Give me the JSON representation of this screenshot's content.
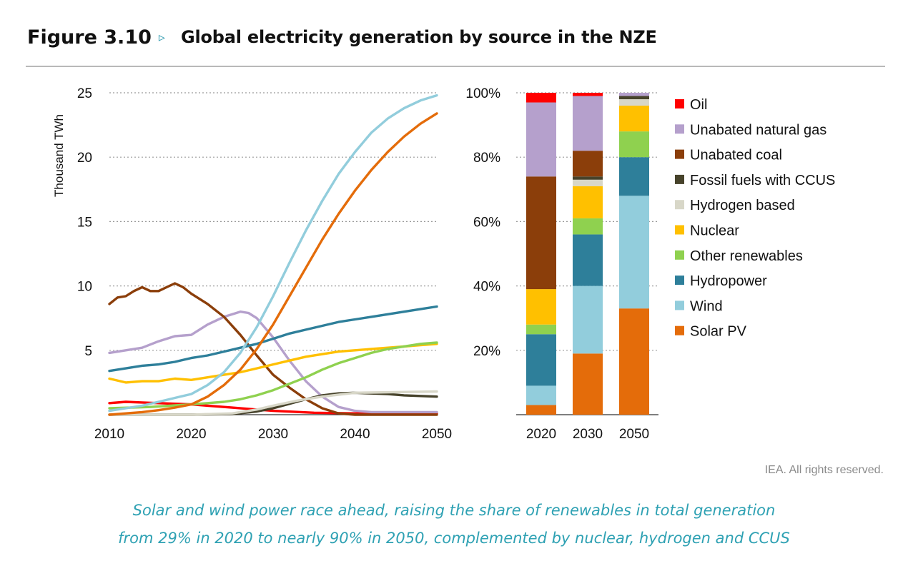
{
  "header": {
    "figure_number": "Figure 3.10",
    "arrow": "▹",
    "title": "Global electricity generation by source in the NZE"
  },
  "credit": "IEA. All rights reserved.",
  "caption": {
    "line1": "Solar and wind power race ahead, raising the share of renewables in total generation",
    "line2": "from 29% in 2020 to nearly 90% in 2050, complemented by nuclear, hydrogen and CCUS"
  },
  "chart_data": [
    {
      "type": "line",
      "ylabel": "Thousand TWh",
      "xlim": [
        2010,
        2050
      ],
      "ylim": [
        0,
        25
      ],
      "xticks": [
        2010,
        2020,
        2030,
        2040,
        2050
      ],
      "yticks": [
        5,
        10,
        15,
        20,
        25
      ],
      "grid": "dotted horizontal",
      "series": [
        {
          "name": "Oil",
          "color": "#ff0000",
          "x": [
            2010,
            2012,
            2014,
            2016,
            2018,
            2020,
            2022,
            2025,
            2028,
            2030,
            2035,
            2040,
            2045,
            2050
          ],
          "y": [
            0.9,
            1.0,
            0.95,
            0.9,
            0.85,
            0.8,
            0.7,
            0.55,
            0.4,
            0.3,
            0.15,
            0.1,
            0.1,
            0.1
          ]
        },
        {
          "name": "Unabated natural gas",
          "color": "#b5a0cc",
          "x": [
            2010,
            2012,
            2014,
            2016,
            2018,
            2020,
            2022,
            2024,
            2026,
            2027,
            2028,
            2030,
            2032,
            2034,
            2036,
            2038,
            2040,
            2042,
            2045,
            2050
          ],
          "y": [
            4.8,
            5.0,
            5.2,
            5.7,
            6.1,
            6.2,
            7.0,
            7.6,
            8.0,
            7.9,
            7.5,
            6.0,
            4.2,
            2.6,
            1.4,
            0.6,
            0.3,
            0.2,
            0.2,
            0.2
          ]
        },
        {
          "name": "Unabated coal",
          "color": "#8b3e0a",
          "x": [
            2010,
            2011,
            2012,
            2013,
            2014,
            2015,
            2016,
            2017,
            2018,
            2019,
            2020,
            2022,
            2024,
            2026,
            2028,
            2030,
            2032,
            2034,
            2036,
            2038,
            2040,
            2045,
            2050
          ],
          "y": [
            8.6,
            9.1,
            9.2,
            9.6,
            9.9,
            9.6,
            9.6,
            9.9,
            10.2,
            9.9,
            9.4,
            8.6,
            7.6,
            6.2,
            4.6,
            3.1,
            2.1,
            1.2,
            0.5,
            0.1,
            0.0,
            0.0,
            0.0
          ]
        },
        {
          "name": "Fossil fuels with CCUS",
          "color": "#47432b",
          "x": [
            2010,
            2020,
            2025,
            2028,
            2030,
            2032,
            2034,
            2036,
            2038,
            2040,
            2042,
            2044,
            2046,
            2048,
            2050
          ],
          "y": [
            0.0,
            0.0,
            0.05,
            0.25,
            0.5,
            0.85,
            1.2,
            1.5,
            1.65,
            1.7,
            1.65,
            1.6,
            1.5,
            1.45,
            1.4
          ]
        },
        {
          "name": "Hydrogen based",
          "color": "#d8d7c8",
          "x": [
            2010,
            2020,
            2025,
            2028,
            2030,
            2033,
            2036,
            2040,
            2045,
            2050
          ],
          "y": [
            0.0,
            0.0,
            0.1,
            0.4,
            0.7,
            1.1,
            1.4,
            1.7,
            1.75,
            1.8
          ]
        },
        {
          "name": "Nuclear",
          "color": "#ffc000",
          "x": [
            2010,
            2012,
            2014,
            2016,
            2018,
            2020,
            2022,
            2024,
            2026,
            2028,
            2030,
            2032,
            2034,
            2036,
            2038,
            2040,
            2042,
            2044,
            2046,
            2048,
            2050
          ],
          "y": [
            2.8,
            2.5,
            2.6,
            2.6,
            2.8,
            2.7,
            2.9,
            3.1,
            3.3,
            3.6,
            3.9,
            4.2,
            4.5,
            4.7,
            4.9,
            5.0,
            5.1,
            5.2,
            5.3,
            5.4,
            5.5
          ]
        },
        {
          "name": "Other renewables",
          "color": "#8fd14f",
          "x": [
            2010,
            2015,
            2020,
            2022,
            2024,
            2026,
            2028,
            2030,
            2032,
            2034,
            2036,
            2038,
            2040,
            2042,
            2044,
            2046,
            2048,
            2050
          ],
          "y": [
            0.5,
            0.6,
            0.8,
            0.9,
            1.0,
            1.2,
            1.5,
            1.9,
            2.4,
            2.9,
            3.5,
            4.0,
            4.4,
            4.8,
            5.1,
            5.3,
            5.5,
            5.6
          ]
        },
        {
          "name": "Hydropower",
          "color": "#2e7f9a",
          "x": [
            2010,
            2012,
            2014,
            2016,
            2018,
            2020,
            2022,
            2024,
            2026,
            2028,
            2030,
            2032,
            2034,
            2036,
            2038,
            2040,
            2042,
            2044,
            2046,
            2048,
            2050
          ],
          "y": [
            3.4,
            3.6,
            3.8,
            3.9,
            4.1,
            4.4,
            4.6,
            4.9,
            5.2,
            5.5,
            5.9,
            6.3,
            6.6,
            6.9,
            7.2,
            7.4,
            7.6,
            7.8,
            8.0,
            8.2,
            8.4
          ]
        },
        {
          "name": "Wind",
          "color": "#92cddc",
          "x": [
            2010,
            2012,
            2014,
            2016,
            2018,
            2020,
            2022,
            2024,
            2026,
            2028,
            2030,
            2032,
            2034,
            2036,
            2038,
            2040,
            2042,
            2044,
            2046,
            2048,
            2050
          ],
          "y": [
            0.3,
            0.5,
            0.7,
            1.0,
            1.3,
            1.6,
            2.3,
            3.3,
            4.8,
            6.8,
            9.2,
            11.8,
            14.3,
            16.6,
            18.7,
            20.4,
            21.9,
            23.0,
            23.8,
            24.4,
            24.8
          ]
        },
        {
          "name": "Solar PV",
          "color": "#e46c0a",
          "x": [
            2010,
            2012,
            2014,
            2016,
            2018,
            2020,
            2022,
            2024,
            2026,
            2028,
            2030,
            2032,
            2034,
            2036,
            2038,
            2040,
            2042,
            2044,
            2046,
            2048,
            2050
          ],
          "y": [
            0.0,
            0.1,
            0.2,
            0.35,
            0.55,
            0.8,
            1.4,
            2.3,
            3.5,
            5.1,
            7.0,
            9.2,
            11.4,
            13.6,
            15.6,
            17.4,
            19.0,
            20.4,
            21.6,
            22.6,
            23.4
          ]
        }
      ]
    },
    {
      "type": "bar",
      "stacked": true,
      "categories": [
        "2020",
        "2030",
        "2050"
      ],
      "ylim": [
        0,
        100
      ],
      "yticks": [
        "20%",
        "40%",
        "60%",
        "80%",
        "100%"
      ],
      "grid": "dotted horizontal",
      "legend": "right",
      "series": [
        {
          "name": "Solar PV",
          "color": "#e46c0a",
          "values": [
            3,
            19,
            33
          ]
        },
        {
          "name": "Wind",
          "color": "#92cddc",
          "values": [
            6,
            21,
            35
          ]
        },
        {
          "name": "Hydropower",
          "color": "#2e7f9a",
          "values": [
            16,
            16,
            12
          ]
        },
        {
          "name": "Other renewables",
          "color": "#8fd14f",
          "values": [
            3,
            5,
            8
          ]
        },
        {
          "name": "Nuclear",
          "color": "#ffc000",
          "values": [
            11,
            10,
            8
          ]
        },
        {
          "name": "Hydrogen based",
          "color": "#d8d7c8",
          "values": [
            0,
            2,
            2
          ]
        },
        {
          "name": "Fossil fuels with CCUS",
          "color": "#47432b",
          "values": [
            0,
            1,
            1
          ]
        },
        {
          "name": "Unabated coal",
          "color": "#8b3e0a",
          "values": [
            35,
            8,
            0
          ]
        },
        {
          "name": "Unabated natural gas",
          "color": "#b5a0cc",
          "values": [
            23,
            17,
            1
          ]
        },
        {
          "name": "Oil",
          "color": "#ff0000",
          "values": [
            3,
            1,
            0
          ]
        }
      ],
      "legend_order": [
        "Oil",
        "Unabated natural gas",
        "Unabated coal",
        "Fossil fuels with CCUS",
        "Hydrogen based",
        "Nuclear",
        "Other renewables",
        "Hydropower",
        "Wind",
        "Solar PV"
      ]
    }
  ]
}
